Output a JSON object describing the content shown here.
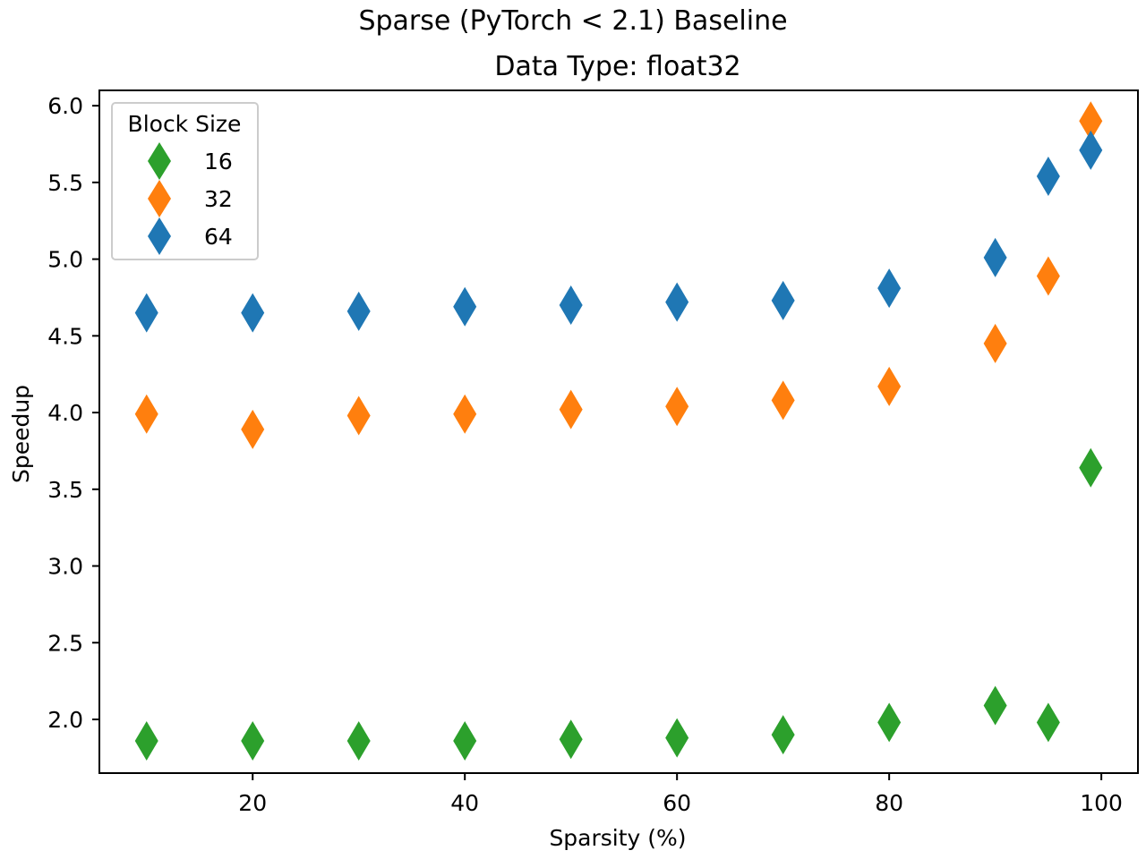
{
  "chart_data": {
    "type": "scatter",
    "title": "Sparse (PyTorch < 2.1) Baseline",
    "subtitle": "Data Type: float32",
    "xlabel": "Sparsity (%)",
    "ylabel": "Speedup",
    "xlim": [
      5.55,
      103.45
    ],
    "ylim": [
      1.65,
      6.1
    ],
    "xticks": [
      20,
      40,
      60,
      80,
      100
    ],
    "yticks": [
      2.0,
      2.5,
      3.0,
      3.5,
      4.0,
      4.5,
      5.0,
      5.5,
      6.0
    ],
    "grid": false,
    "marker": "diamond",
    "legend": {
      "title": "Block Size",
      "placement": "top-left"
    },
    "x": [
      10,
      20,
      30,
      40,
      50,
      60,
      70,
      80,
      90,
      95,
      99
    ],
    "series": [
      {
        "name": "16",
        "color": "#2ca02c",
        "values": [
          1.86,
          1.86,
          1.86,
          1.86,
          1.87,
          1.88,
          1.9,
          1.98,
          2.09,
          1.98,
          3.64
        ]
      },
      {
        "name": "32",
        "color": "#ff7f0e",
        "values": [
          3.99,
          3.89,
          3.98,
          3.99,
          4.02,
          4.04,
          4.08,
          4.17,
          4.45,
          4.89,
          5.9
        ]
      },
      {
        "name": "64",
        "color": "#1f77b4",
        "values": [
          4.65,
          4.65,
          4.66,
          4.69,
          4.7,
          4.72,
          4.73,
          4.81,
          5.01,
          5.54,
          5.71
        ]
      }
    ]
  }
}
